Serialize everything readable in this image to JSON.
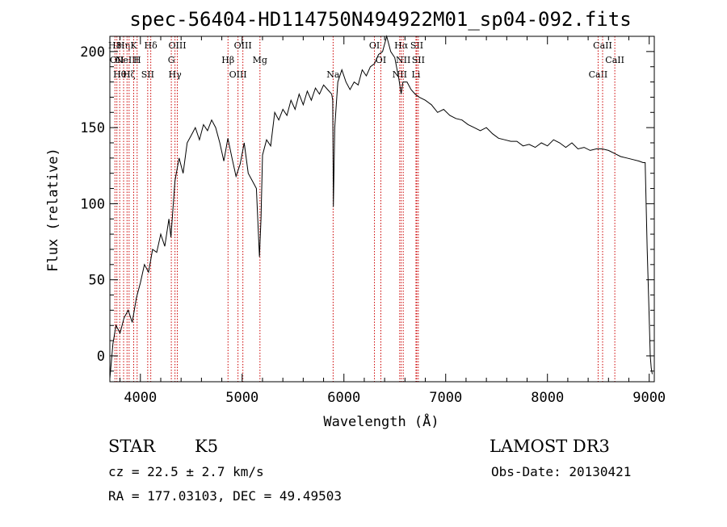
{
  "chart_data": {
    "type": "line",
    "title": "spec-56404-HD114750N494922M01_sp04-092.fits",
    "xlabel": "Wavelength (Å)",
    "ylabel": "Flux (relative)",
    "xlim": [
      3700,
      9050
    ],
    "ylim": [
      -17,
      210
    ],
    "x_ticks": [
      4000,
      5000,
      6000,
      7000,
      8000,
      9000
    ],
    "y_ticks": [
      0,
      50,
      100,
      150,
      200
    ],
    "x_tick_labels": [
      "4000",
      "5000",
      "6000",
      "7000",
      "8000",
      "9000"
    ],
    "y_tick_labels": [
      "0",
      "50",
      "100",
      "150",
      "200"
    ],
    "line_color": "#000000",
    "marker_color": "#cc0000",
    "series": [
      {
        "x": [
          3700,
          3730,
          3760,
          3800,
          3840,
          3880,
          3920,
          3960,
          4000,
          4040,
          4080,
          4120,
          4160,
          4200,
          4240,
          4280,
          4300,
          4340,
          4380,
          4420,
          4460,
          4500,
          4540,
          4580,
          4620,
          4660,
          4700,
          4740,
          4780,
          4820,
          4860,
          4900,
          4940,
          4980,
          5020,
          5060,
          5100,
          5140,
          5170,
          5185,
          5200,
          5240,
          5280,
          5320,
          5360,
          5400,
          5440,
          5480,
          5520,
          5560,
          5600,
          5640,
          5680,
          5720,
          5760,
          5800,
          5840,
          5880,
          5890,
          5896,
          5910,
          5940,
          5980,
          6020,
          6060,
          6100,
          6140,
          6180,
          6220,
          6260,
          6300,
          6340,
          6380,
          6420,
          6440,
          6460,
          6500,
          6540,
          6562,
          6580,
          6620,
          6660,
          6700,
          6740,
          6800,
          6860,
          6920,
          6980,
          7040,
          7100,
          7160,
          7220,
          7280,
          7340,
          7400,
          7460,
          7520,
          7580,
          7640,
          7700,
          7760,
          7820,
          7880,
          7940,
          8000,
          8060,
          8120,
          8180,
          8240,
          8300,
          8360,
          8420,
          8480,
          8540,
          8600,
          8660,
          8720,
          8780,
          8840,
          8900,
          8940,
          8960,
          8980,
          9000,
          9010,
          9020,
          9030
        ],
        "y": [
          -15,
          8,
          20,
          15,
          25,
          30,
          22,
          38,
          48,
          60,
          55,
          70,
          68,
          80,
          72,
          90,
          78,
          115,
          130,
          120,
          140,
          145,
          150,
          142,
          152,
          148,
          155,
          150,
          140,
          128,
          143,
          130,
          118,
          126,
          140,
          120,
          115,
          110,
          65,
          90,
          132,
          142,
          138,
          160,
          155,
          162,
          158,
          168,
          162,
          172,
          165,
          174,
          168,
          176,
          172,
          178,
          175,
          172,
          168,
          98,
          150,
          180,
          188,
          180,
          175,
          180,
          178,
          188,
          184,
          190,
          192,
          198,
          200,
          210,
          205,
          200,
          196,
          182,
          172,
          180,
          180,
          175,
          172,
          170,
          168,
          165,
          160,
          162,
          158,
          156,
          155,
          152,
          150,
          148,
          150,
          146,
          143,
          142,
          141,
          141,
          138,
          139,
          137,
          140,
          138,
          142,
          140,
          137,
          140,
          136,
          137,
          135,
          136,
          136,
          135,
          133,
          131,
          130,
          129,
          128,
          127,
          127,
          70,
          25,
          0,
          -8,
          -12
        ]
      }
    ],
    "lines": [
      {
        "x": 3750,
        "label": "H8"
      },
      {
        "x": 3769,
        "label": "OII"
      },
      {
        "x": 3797,
        "label": "Hθ"
      },
      {
        "x": 3835,
        "label": "Hη"
      },
      {
        "x": 3869,
        "label": "NeIII"
      },
      {
        "x": 3889,
        "label": "Hζ"
      },
      {
        "x": 3934,
        "label": "K"
      },
      {
        "x": 3968,
        "label": "H"
      },
      {
        "x": 4072,
        "label": "SII"
      },
      {
        "x": 4102,
        "label": "Hδ"
      },
      {
        "x": 4304,
        "label": "G"
      },
      {
        "x": 4340,
        "label": "Hγ"
      },
      {
        "x": 4363,
        "label": "OIII"
      },
      {
        "x": 4861,
        "label": "Hβ"
      },
      {
        "x": 4959,
        "label": "OIII"
      },
      {
        "x": 5007,
        "label": "OIII"
      },
      {
        "x": 5175,
        "label": "Mg"
      },
      {
        "x": 5894,
        "label": "Na"
      },
      {
        "x": 6300,
        "label": "OI"
      },
      {
        "x": 6363,
        "label": "OI"
      },
      {
        "x": 6548,
        "label": "NII"
      },
      {
        "x": 6563,
        "label": "Hα"
      },
      {
        "x": 6583,
        "label": "NII"
      },
      {
        "x": 6708,
        "label": "Li"
      },
      {
        "x": 6716,
        "label": "SII"
      },
      {
        "x": 6731,
        "label": "SII"
      },
      {
        "x": 8498,
        "label": "CaII"
      },
      {
        "x": 8542,
        "label": "CaII"
      },
      {
        "x": 8662,
        "label": "CaII"
      }
    ],
    "grid": false,
    "legend": "none"
  },
  "info": {
    "object_class": "STAR",
    "subclass": "K5",
    "survey": "LAMOST DR3",
    "redshift": "cz = 22.5 ± 2.7 km/s",
    "obs_date": "Obs-Date: 20130421",
    "coords": "RA = 177.03103, DEC =  49.49503"
  }
}
